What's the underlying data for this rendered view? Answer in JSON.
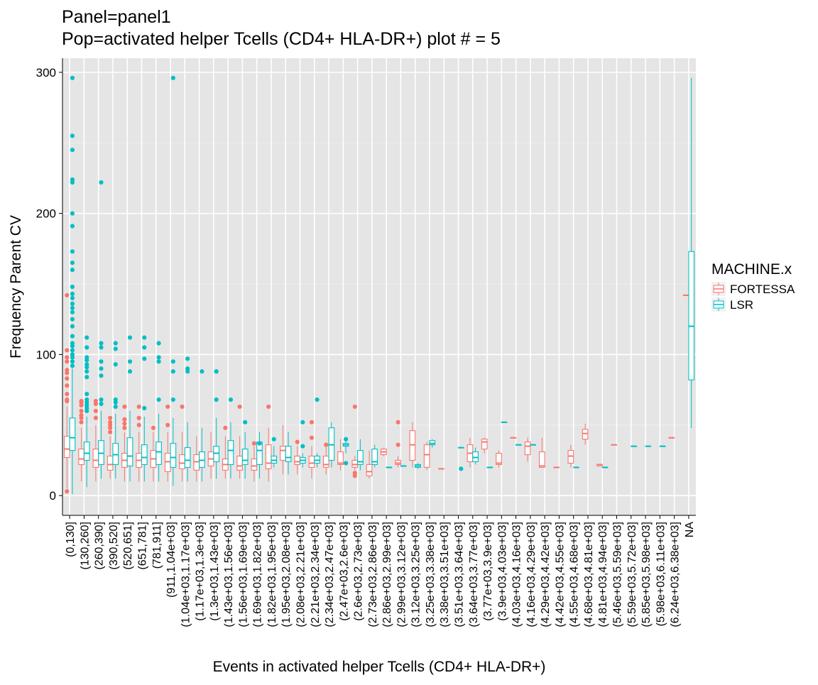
{
  "chart_data": {
    "type": "boxplot",
    "title": [
      "Panel=panel1",
      "Pop=activated helper Tcells (CD4+ HLA-DR+) plot # = 5"
    ],
    "xlabel": "Events in activated helper Tcells (CD4+ HLA-DR+)",
    "ylabel": "Frequency Parent CV",
    "ylim": [
      -14,
      310
    ],
    "yticks": [
      0,
      100,
      200,
      300
    ],
    "grid": true,
    "legend": {
      "title": "MACHINE.x",
      "position": "right",
      "entries": [
        {
          "name": "FORTESSA",
          "color": "#F8766D"
        },
        {
          "name": "LSR",
          "color": "#00BFC4"
        }
      ]
    },
    "categories": [
      "(0,130]",
      "(130,260]",
      "(260,390]",
      "(390,520]",
      "(520,651]",
      "(651,781]",
      "(781,911]",
      "(911,1.04e+03]",
      "(1.04e+03,1.17e+03]",
      "(1.17e+03,1.3e+03]",
      "(1.3e+03,1.43e+03]",
      "(1.43e+03,1.56e+03]",
      "(1.56e+03,1.69e+03]",
      "(1.69e+03,1.82e+03]",
      "(1.82e+03,1.95e+03]",
      "(1.95e+03,2.08e+03]",
      "(2.08e+03,2.21e+03]",
      "(2.21e+03,2.34e+03]",
      "(2.34e+03,2.47e+03]",
      "(2.47e+03,2.6e+03]",
      "(2.6e+03,2.73e+03]",
      "(2.73e+03,2.86e+03]",
      "(2.86e+03,2.99e+03]",
      "(2.99e+03,3.12e+03]",
      "(3.12e+03,3.25e+03]",
      "(3.25e+03,3.38e+03]",
      "(3.38e+03,3.51e+03]",
      "(3.51e+03,3.64e+03]",
      "(3.64e+03,3.77e+03]",
      "(3.77e+03,3.9e+03]",
      "(3.9e+03,4.03e+03]",
      "(4.03e+03,4.16e+03]",
      "(4.16e+03,4.29e+03]",
      "(4.29e+03,4.42e+03]",
      "(4.42e+03,4.55e+03]",
      "(4.55e+03,4.68e+03]",
      "(4.68e+03,4.81e+03]",
      "(4.81e+03,4.94e+03]",
      "(5.46e+03,5.59e+03]",
      "(5.59e+03,5.72e+03]",
      "(5.85e+03,5.98e+03]",
      "(5.98e+03,6.11e+03]",
      "(6.24e+03,6.38e+03]",
      "NA"
    ],
    "boxes": [
      {
        "cat": 0,
        "machine": "FORTESSA",
        "min": 5,
        "q1": 27,
        "median": 33,
        "q3": 42,
        "max": 63,
        "outliers": [
          3,
          67,
          68,
          72,
          78,
          83,
          87,
          89,
          95,
          98,
          103,
          142
        ]
      },
      {
        "cat": 0,
        "machine": "LSR",
        "min": 1,
        "q1": 32,
        "median": 41,
        "q3": 55,
        "max": 90,
        "outliers": [
          92,
          95,
          98,
          100,
          103,
          106,
          108,
          113,
          120,
          125,
          130,
          133,
          136,
          140,
          143,
          148,
          160,
          165,
          173,
          191,
          200,
          222,
          224,
          245,
          255,
          296
        ]
      },
      {
        "cat": 1,
        "machine": "FORTESSA",
        "min": 10,
        "q1": 22,
        "median": 26,
        "q3": 33,
        "max": 48,
        "outliers": [
          52,
          55,
          57,
          60,
          64,
          66,
          67
        ]
      },
      {
        "cat": 1,
        "machine": "LSR",
        "min": 6,
        "q1": 25,
        "median": 30,
        "q3": 38,
        "max": 56,
        "outliers": [
          60,
          62,
          64,
          66,
          68,
          72,
          84,
          88,
          91,
          93,
          96,
          98,
          105,
          112
        ]
      },
      {
        "cat": 2,
        "machine": "FORTESSA",
        "min": 10,
        "q1": 20,
        "median": 25,
        "q3": 33,
        "max": 50,
        "outliers": [
          55,
          60,
          65,
          67
        ]
      },
      {
        "cat": 2,
        "machine": "LSR",
        "min": 12,
        "q1": 22,
        "median": 30,
        "q3": 39,
        "max": 60,
        "outliers": [
          65,
          68,
          85,
          90,
          95,
          105,
          108,
          222
        ]
      },
      {
        "cat": 3,
        "machine": "FORTESSA",
        "min": 12,
        "q1": 18,
        "median": 22,
        "q3": 28,
        "max": 42,
        "outliers": [
          45,
          48,
          50,
          52,
          55
        ]
      },
      {
        "cat": 3,
        "machine": "LSR",
        "min": 12,
        "q1": 22,
        "median": 29,
        "q3": 37,
        "max": 58,
        "outliers": [
          63,
          66,
          68,
          93,
          104,
          108
        ]
      },
      {
        "cat": 4,
        "machine": "FORTESSA",
        "min": 10,
        "q1": 20,
        "median": 25,
        "q3": 30,
        "max": 45,
        "outliers": [
          48,
          51,
          54,
          63
        ]
      },
      {
        "cat": 4,
        "machine": "LSR",
        "min": 10,
        "q1": 21,
        "median": 28,
        "q3": 41,
        "max": 60,
        "outliers": [
          88,
          95,
          112
        ]
      },
      {
        "cat": 5,
        "machine": "FORTESSA",
        "min": 10,
        "q1": 20,
        "median": 25,
        "q3": 30,
        "max": 45,
        "outliers": [
          50,
          55,
          63
        ]
      },
      {
        "cat": 5,
        "machine": "LSR",
        "min": 10,
        "q1": 22,
        "median": 27,
        "q3": 36,
        "max": 56,
        "outliers": [
          62,
          97,
          105,
          112
        ]
      },
      {
        "cat": 6,
        "machine": "FORTESSA",
        "min": 10,
        "q1": 20,
        "median": 26,
        "q3": 32,
        "max": 45,
        "outliers": [
          48
        ]
      },
      {
        "cat": 6,
        "machine": "LSR",
        "min": 10,
        "q1": 22,
        "median": 31,
        "q3": 38,
        "max": 58,
        "outliers": [
          68,
          95,
          98,
          108
        ]
      },
      {
        "cat": 7,
        "machine": "FORTESSA",
        "min": 10,
        "q1": 17,
        "median": 24,
        "q3": 30,
        "max": 45,
        "outliers": [
          50,
          63
        ]
      },
      {
        "cat": 7,
        "machine": "LSR",
        "min": 7,
        "q1": 20,
        "median": 27,
        "q3": 37,
        "max": 55,
        "outliers": [
          68,
          88,
          95,
          296
        ]
      },
      {
        "cat": 8,
        "machine": "FORTESSA",
        "min": 10,
        "q1": 19,
        "median": 23,
        "q3": 29,
        "max": 45,
        "outliers": [
          63
        ]
      },
      {
        "cat": 8,
        "machine": "LSR",
        "min": 10,
        "q1": 20,
        "median": 25,
        "q3": 34,
        "max": 52,
        "outliers": [
          88,
          90,
          97
        ]
      },
      {
        "cat": 9,
        "machine": "FORTESSA",
        "min": 10,
        "q1": 18,
        "median": 24,
        "q3": 29,
        "max": 42,
        "outliers": []
      },
      {
        "cat": 9,
        "machine": "LSR",
        "min": 10,
        "q1": 20,
        "median": 25,
        "q3": 31,
        "max": 48,
        "outliers": [
          88
        ]
      },
      {
        "cat": 10,
        "machine": "FORTESSA",
        "min": 12,
        "q1": 21,
        "median": 26,
        "q3": 31,
        "max": 45,
        "outliers": []
      },
      {
        "cat": 10,
        "machine": "LSR",
        "min": 12,
        "q1": 24,
        "median": 30,
        "q3": 35,
        "max": 55,
        "outliers": [
          68,
          88,
          88
        ]
      },
      {
        "cat": 11,
        "machine": "FORTESSA",
        "min": 12,
        "q1": 18,
        "median": 22,
        "q3": 26,
        "max": 42,
        "outliers": [
          48
        ]
      },
      {
        "cat": 11,
        "machine": "LSR",
        "min": 12,
        "q1": 22,
        "median": 32,
        "q3": 39,
        "max": 52,
        "outliers": [
          68
        ]
      },
      {
        "cat": 12,
        "machine": "FORTESSA",
        "min": 12,
        "q1": 18,
        "median": 21,
        "q3": 28,
        "max": 42,
        "outliers": [
          63
        ]
      },
      {
        "cat": 12,
        "machine": "LSR",
        "min": 12,
        "q1": 22,
        "median": 25,
        "q3": 33,
        "max": 45,
        "outliers": [
          52
        ]
      },
      {
        "cat": 13,
        "machine": "FORTESSA",
        "min": 10,
        "q1": 18,
        "median": 21,
        "q3": 26,
        "max": 35,
        "outliers": [
          37
        ]
      },
      {
        "cat": 13,
        "machine": "LSR",
        "min": 12,
        "q1": 22,
        "median": 32,
        "q3": 38,
        "max": 45,
        "outliers": [
          37
        ]
      },
      {
        "cat": 14,
        "machine": "FORTESSA",
        "min": 10,
        "q1": 19,
        "median": 23,
        "q3": 36,
        "max": 48,
        "outliers": [
          63
        ]
      },
      {
        "cat": 14,
        "machine": "LSR",
        "min": 20,
        "q1": 23,
        "median": 25,
        "q3": 28,
        "max": 35,
        "outliers": [
          40
        ]
      },
      {
        "cat": 15,
        "machine": "FORTESSA",
        "min": 15,
        "q1": 25,
        "median": 32,
        "q3": 35,
        "max": 50,
        "outliers": []
      },
      {
        "cat": 15,
        "machine": "LSR",
        "min": 15,
        "q1": 24,
        "median": 27,
        "q3": 35,
        "max": 45,
        "outliers": []
      },
      {
        "cat": 16,
        "machine": "FORTESSA",
        "min": 15,
        "q1": 22,
        "median": 24,
        "q3": 28,
        "max": 35,
        "outliers": [
          38
        ]
      },
      {
        "cat": 16,
        "machine": "LSR",
        "min": 20,
        "q1": 23,
        "median": 25,
        "q3": 27,
        "max": 30,
        "outliers": [
          35,
          52
        ]
      },
      {
        "cat": 17,
        "machine": "FORTESSA",
        "min": 12,
        "q1": 20,
        "median": 23,
        "q3": 28,
        "max": 35,
        "outliers": [
          41,
          52
        ]
      },
      {
        "cat": 17,
        "machine": "LSR",
        "min": 20,
        "q1": 23,
        "median": 25,
        "q3": 28,
        "max": 30,
        "outliers": [
          68
        ]
      },
      {
        "cat": 18,
        "machine": "FORTESSA",
        "min": 15,
        "q1": 20,
        "median": 22,
        "q3": 28,
        "max": 35,
        "outliers": [
          36
        ]
      },
      {
        "cat": 18,
        "machine": "LSR",
        "min": 20,
        "q1": 25,
        "median": 36,
        "q3": 48,
        "max": 52,
        "outliers": []
      },
      {
        "cat": 19,
        "machine": "FORTESSA",
        "min": 18,
        "q1": 22,
        "median": 23,
        "q3": 31,
        "max": 40,
        "outliers": []
      },
      {
        "cat": 19,
        "machine": "LSR",
        "min": 30,
        "q1": 35,
        "median": 36,
        "q3": 37,
        "max": 40,
        "outliers": [
          23,
          40
        ]
      },
      {
        "cat": 20,
        "machine": "FORTESSA",
        "min": 18,
        "q1": 20,
        "median": 22,
        "q3": 25,
        "max": 28,
        "outliers": [
          14,
          16,
          63
        ]
      },
      {
        "cat": 20,
        "machine": "LSR",
        "min": 18,
        "q1": 22,
        "median": 24,
        "q3": 32,
        "max": 40,
        "outliers": []
      },
      {
        "cat": 21,
        "machine": "FORTESSA",
        "min": 12,
        "q1": 14,
        "median": 17,
        "q3": 22,
        "max": 32,
        "outliers": []
      },
      {
        "cat": 21,
        "machine": "LSR",
        "min": 20,
        "q1": 22,
        "median": 24,
        "q3": 33,
        "max": 36,
        "outliers": []
      },
      {
        "cat": 22,
        "machine": "FORTESSA",
        "min": 28,
        "q1": 29,
        "median": 31,
        "q3": 33,
        "max": 34,
        "outliers": []
      },
      {
        "cat": 22,
        "machine": "LSR",
        "min": 20,
        "q1": 20,
        "median": 20,
        "q3": 20,
        "max": 20,
        "outliers": []
      },
      {
        "cat": 23,
        "machine": "FORTESSA",
        "min": 20,
        "q1": 22,
        "median": 23,
        "q3": 25,
        "max": 28,
        "outliers": [
          36,
          52
        ]
      },
      {
        "cat": 23,
        "machine": "LSR",
        "min": 21,
        "q1": 21,
        "median": 21,
        "q3": 21,
        "max": 21,
        "outliers": []
      },
      {
        "cat": 24,
        "machine": "FORTESSA",
        "min": 20,
        "q1": 25,
        "median": 36,
        "q3": 46,
        "max": 52,
        "outliers": []
      },
      {
        "cat": 24,
        "machine": "LSR",
        "min": 19,
        "q1": 20,
        "median": 21,
        "q3": 22,
        "max": 23,
        "outliers": []
      },
      {
        "cat": 25,
        "machine": "FORTESSA",
        "min": 18,
        "q1": 20,
        "median": 29,
        "q3": 36,
        "max": 38,
        "outliers": []
      },
      {
        "cat": 25,
        "machine": "LSR",
        "min": 34,
        "q1": 36,
        "median": 37,
        "q3": 39,
        "max": 40,
        "outliers": []
      },
      {
        "cat": 26,
        "machine": "FORTESSA",
        "min": 19,
        "q1": 19,
        "median": 19,
        "q3": 19,
        "max": 19,
        "outliers": []
      },
      {
        "cat": 27,
        "machine": "LSR",
        "min": 34,
        "q1": 34,
        "median": 34,
        "q3": 34,
        "max": 34,
        "outliers": [
          19
        ]
      },
      {
        "cat": 28,
        "machine": "FORTESSA",
        "min": 20,
        "q1": 24,
        "median": 30,
        "q3": 36,
        "max": 41,
        "outliers": []
      },
      {
        "cat": 28,
        "machine": "LSR",
        "min": 22,
        "q1": 24,
        "median": 27,
        "q3": 31,
        "max": 34,
        "outliers": []
      },
      {
        "cat": 29,
        "machine": "FORTESSA",
        "min": 30,
        "q1": 33,
        "median": 38,
        "q3": 40,
        "max": 41,
        "outliers": []
      },
      {
        "cat": 29,
        "machine": "LSR",
        "min": 20,
        "q1": 20,
        "median": 20,
        "q3": 20,
        "max": 20,
        "outliers": []
      },
      {
        "cat": 30,
        "machine": "FORTESSA",
        "min": 20,
        "q1": 22,
        "median": 23,
        "q3": 30,
        "max": 32,
        "outliers": []
      },
      {
        "cat": 30,
        "machine": "LSR",
        "min": 52,
        "q1": 52,
        "median": 52,
        "q3": 52,
        "max": 52,
        "outliers": []
      },
      {
        "cat": 31,
        "machine": "FORTESSA",
        "min": 41,
        "q1": 41,
        "median": 41,
        "q3": 41,
        "max": 41,
        "outliers": []
      },
      {
        "cat": 31,
        "machine": "LSR",
        "min": 36,
        "q1": 36,
        "median": 36,
        "q3": 36,
        "max": 36,
        "outliers": []
      },
      {
        "cat": 32,
        "machine": "FORTESSA",
        "min": 24,
        "q1": 29,
        "median": 35,
        "q3": 38,
        "max": 41,
        "outliers": []
      },
      {
        "cat": 32,
        "machine": "LSR",
        "min": 36,
        "q1": 36,
        "median": 36,
        "q3": 36,
        "max": 36,
        "outliers": []
      },
      {
        "cat": 33,
        "machine": "FORTESSA",
        "min": 20,
        "q1": 20,
        "median": 21,
        "q3": 31,
        "max": 41,
        "outliers": []
      },
      {
        "cat": 34,
        "machine": "FORTESSA",
        "min": 20,
        "q1": 20,
        "median": 20,
        "q3": 20,
        "max": 20,
        "outliers": []
      },
      {
        "cat": 35,
        "machine": "FORTESSA",
        "min": 20,
        "q1": 23,
        "median": 28,
        "q3": 32,
        "max": 36,
        "outliers": []
      },
      {
        "cat": 35,
        "machine": "LSR",
        "min": 20,
        "q1": 20,
        "median": 20,
        "q3": 20,
        "max": 20,
        "outliers": []
      },
      {
        "cat": 36,
        "machine": "FORTESSA",
        "min": 36,
        "q1": 40,
        "median": 44,
        "q3": 47,
        "max": 51,
        "outliers": []
      },
      {
        "cat": 37,
        "machine": "FORTESSA",
        "min": 21,
        "q1": 21,
        "median": 22,
        "q3": 22,
        "max": 22,
        "outliers": []
      },
      {
        "cat": 37,
        "machine": "LSR",
        "min": 20,
        "q1": 20,
        "median": 20,
        "q3": 20,
        "max": 20,
        "outliers": []
      },
      {
        "cat": 38,
        "machine": "FORTESSA",
        "min": 36,
        "q1": 36,
        "median": 36,
        "q3": 36,
        "max": 36,
        "outliers": []
      },
      {
        "cat": 39,
        "machine": "LSR",
        "min": 35,
        "q1": 35,
        "median": 35,
        "q3": 35,
        "max": 35,
        "outliers": []
      },
      {
        "cat": 40,
        "machine": "LSR",
        "min": 35,
        "q1": 35,
        "median": 35,
        "q3": 35,
        "max": 35,
        "outliers": []
      },
      {
        "cat": 41,
        "machine": "LSR",
        "min": 35,
        "q1": 35,
        "median": 35,
        "q3": 35,
        "max": 35,
        "outliers": []
      },
      {
        "cat": 42,
        "machine": "FORTESSA",
        "min": 41,
        "q1": 41,
        "median": 41,
        "q3": 41,
        "max": 41,
        "outliers": []
      },
      {
        "cat": 43,
        "machine": "FORTESSA",
        "min": 142,
        "q1": 142,
        "median": 142,
        "q3": 142,
        "max": 142,
        "outliers": []
      },
      {
        "cat": 43,
        "machine": "LSR",
        "min": 48,
        "q1": 82,
        "median": 120,
        "q3": 173,
        "max": 296,
        "outliers": []
      }
    ]
  }
}
